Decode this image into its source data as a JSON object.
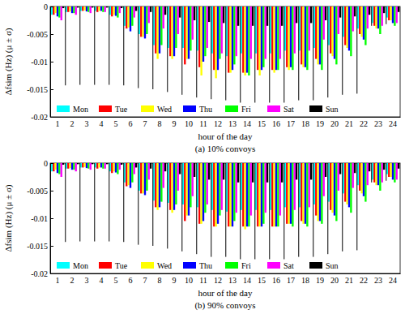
{
  "chart_data": [
    {
      "type": "bar",
      "title": "(a) 10% convoys",
      "x_label": "hour of the day",
      "y_label": "Δfsim (Hz)  (μ ± σ)",
      "categories": [
        "1",
        "2",
        "3",
        "4",
        "5",
        "6",
        "7",
        "8",
        "9",
        "10",
        "11",
        "12",
        "13",
        "14",
        "15",
        "16",
        "17",
        "18",
        "19",
        "20",
        "21",
        "22",
        "23",
        "24"
      ],
      "ylim": [
        -0.02,
        0
      ],
      "yticks": [
        -0.02,
        -0.015,
        -0.01,
        -0.005,
        0
      ],
      "legend": "lower left",
      "grid": false,
      "series": [
        {
          "name": "Mon",
          "color": "#00ffff",
          "values": [
            -0.0015,
            -0.001,
            -0.0008,
            -0.0008,
            -0.0015,
            -0.0035,
            -0.005,
            -0.007,
            -0.0075,
            -0.0075,
            -0.008,
            -0.0085,
            -0.009,
            -0.0085,
            -0.0085,
            -0.0085,
            -0.008,
            -0.008,
            -0.0075,
            -0.007,
            -0.0055,
            -0.004,
            -0.003,
            -0.002
          ]
        },
        {
          "name": "Tue",
          "color": "#ff0000",
          "values": [
            -0.0015,
            -0.001,
            -0.0008,
            -0.001,
            -0.0018,
            -0.004,
            -0.0055,
            -0.0085,
            -0.009,
            -0.0105,
            -0.011,
            -0.0115,
            -0.012,
            -0.012,
            -0.0115,
            -0.0115,
            -0.011,
            -0.0105,
            -0.0095,
            -0.0085,
            -0.007,
            -0.005,
            -0.0035,
            -0.0025
          ]
        },
        {
          "name": "Wed",
          "color": "#ffff00",
          "values": [
            -0.0012,
            -0.0009,
            -0.0007,
            -0.0008,
            -0.0015,
            -0.0038,
            -0.0055,
            -0.0095,
            -0.0095,
            -0.0095,
            -0.0125,
            -0.013,
            -0.012,
            -0.0125,
            -0.0125,
            -0.012,
            -0.0115,
            -0.011,
            -0.0105,
            -0.009,
            -0.0075,
            -0.0055,
            -0.004,
            -0.0025
          ]
        },
        {
          "name": "Thu",
          "color": "#0000ff",
          "values": [
            -0.0018,
            -0.0012,
            -0.0009,
            -0.0008,
            -0.0017,
            -0.0045,
            -0.0058,
            -0.0085,
            -0.009,
            -0.0095,
            -0.01,
            -0.0115,
            -0.0115,
            -0.012,
            -0.0115,
            -0.0115,
            -0.011,
            -0.011,
            -0.0105,
            -0.0095,
            -0.008,
            -0.006,
            -0.004,
            -0.003
          ]
        },
        {
          "name": "Fri",
          "color": "#00ff00",
          "values": [
            -0.002,
            -0.0012,
            -0.001,
            -0.001,
            -0.002,
            -0.0035,
            -0.005,
            -0.007,
            -0.0075,
            -0.008,
            -0.009,
            -0.0095,
            -0.0105,
            -0.0125,
            -0.011,
            -0.0115,
            -0.0115,
            -0.0115,
            -0.0115,
            -0.0105,
            -0.009,
            -0.007,
            -0.005,
            -0.0035
          ]
        },
        {
          "name": "Sat",
          "color": "#ff00ff",
          "values": [
            -0.0025,
            -0.0015,
            -0.0012,
            -0.001,
            -0.0012,
            -0.002,
            -0.003,
            -0.004,
            -0.005,
            -0.006,
            -0.0075,
            -0.0085,
            -0.009,
            -0.0095,
            -0.0095,
            -0.0095,
            -0.0085,
            -0.008,
            -0.006,
            -0.005,
            -0.0045,
            -0.004,
            -0.0035,
            -0.003
          ]
        },
        {
          "name": "Sun",
          "color": "#000000",
          "values": [
            -0.0003,
            -0.0002,
            -0.0002,
            -0.0002,
            -0.0003,
            -0.0008,
            -0.001,
            -0.0015,
            -0.002,
            -0.0025,
            -0.0028,
            -0.003,
            -0.0035,
            -0.0035,
            -0.0035,
            -0.0035,
            -0.003,
            -0.003,
            -0.0025,
            -0.002,
            -0.0018,
            -0.0015,
            -0.0012,
            -0.001
          ],
          "errors": [
            0.014,
            0.014,
            0.014,
            0.014,
            0.014,
            0.014,
            0.014,
            0.014,
            0.014,
            0.014,
            0.014,
            0.014,
            0.014,
            0.014,
            0.014,
            0.014,
            0.014,
            0.014,
            0.014,
            0.014,
            0.014,
            0.002,
            0.002,
            0.002
          ]
        }
      ]
    },
    {
      "type": "bar",
      "title": "(b) 90% convoys",
      "x_label": "hour of the day",
      "y_label": "Δfsim (Hz)  (μ ± σ)",
      "categories": [
        "1",
        "2",
        "3",
        "4",
        "5",
        "6",
        "7",
        "8",
        "9",
        "10",
        "11",
        "12",
        "13",
        "14",
        "15",
        "16",
        "17",
        "18",
        "19",
        "20",
        "21",
        "22",
        "23",
        "24"
      ],
      "ylim": [
        -0.02,
        0
      ],
      "yticks": [
        -0.02,
        -0.015,
        -0.01,
        -0.005,
        0
      ],
      "legend": "lower left",
      "grid": false,
      "series": [
        {
          "name": "Mon",
          "color": "#00ffff",
          "values": [
            -0.0015,
            -0.001,
            -0.0008,
            -0.0008,
            -0.0015,
            -0.0035,
            -0.005,
            -0.0068,
            -0.0072,
            -0.0075,
            -0.008,
            -0.0085,
            -0.0088,
            -0.0085,
            -0.0085,
            -0.0085,
            -0.008,
            -0.008,
            -0.0075,
            -0.007,
            -0.0055,
            -0.004,
            -0.003,
            -0.002
          ]
        },
        {
          "name": "Tue",
          "color": "#ff0000",
          "values": [
            -0.0015,
            -0.001,
            -0.0008,
            -0.001,
            -0.0018,
            -0.0042,
            -0.0055,
            -0.008,
            -0.0085,
            -0.0105,
            -0.011,
            -0.0115,
            -0.0115,
            -0.0115,
            -0.0115,
            -0.0115,
            -0.011,
            -0.0105,
            -0.0095,
            -0.0085,
            -0.007,
            -0.005,
            -0.0035,
            -0.0025
          ]
        },
        {
          "name": "Wed",
          "color": "#ffff00",
          "values": [
            -0.0012,
            -0.0009,
            -0.0007,
            -0.0008,
            -0.0015,
            -0.004,
            -0.0055,
            -0.0085,
            -0.009,
            -0.0095,
            -0.011,
            -0.0115,
            -0.0115,
            -0.012,
            -0.0115,
            -0.0115,
            -0.011,
            -0.011,
            -0.0105,
            -0.009,
            -0.0075,
            -0.0055,
            -0.004,
            -0.0025
          ]
        },
        {
          "name": "Thu",
          "color": "#0000ff",
          "values": [
            -0.0018,
            -0.0012,
            -0.0009,
            -0.0008,
            -0.0017,
            -0.0045,
            -0.0058,
            -0.008,
            -0.0085,
            -0.0095,
            -0.0105,
            -0.011,
            -0.0115,
            -0.0115,
            -0.0115,
            -0.0115,
            -0.011,
            -0.011,
            -0.0105,
            -0.0095,
            -0.008,
            -0.006,
            -0.004,
            -0.003
          ]
        },
        {
          "name": "Fri",
          "color": "#00ff00",
          "values": [
            -0.002,
            -0.0012,
            -0.001,
            -0.001,
            -0.002,
            -0.0035,
            -0.005,
            -0.007,
            -0.0075,
            -0.008,
            -0.009,
            -0.0095,
            -0.0105,
            -0.0115,
            -0.011,
            -0.0115,
            -0.0115,
            -0.0115,
            -0.011,
            -0.0105,
            -0.009,
            -0.007,
            -0.005,
            -0.0035
          ]
        },
        {
          "name": "Sat",
          "color": "#ff00ff",
          "values": [
            -0.0025,
            -0.0015,
            -0.0012,
            -0.001,
            -0.0012,
            -0.002,
            -0.003,
            -0.0045,
            -0.005,
            -0.006,
            -0.0075,
            -0.0085,
            -0.009,
            -0.0095,
            -0.009,
            -0.0095,
            -0.0085,
            -0.008,
            -0.006,
            -0.005,
            -0.0045,
            -0.004,
            -0.0035,
            -0.003
          ]
        },
        {
          "name": "Sun",
          "color": "#000000",
          "values": [
            -0.0003,
            -0.0002,
            -0.0002,
            -0.0002,
            -0.0003,
            -0.0008,
            -0.001,
            -0.0015,
            -0.002,
            -0.0025,
            -0.003,
            -0.003,
            -0.0035,
            -0.0035,
            -0.0035,
            -0.0035,
            -0.003,
            -0.003,
            -0.0025,
            -0.002,
            -0.0018,
            -0.0015,
            -0.0012,
            -0.001
          ],
          "errors": [
            0.014,
            0.014,
            0.014,
            0.014,
            0.014,
            0.014,
            0.014,
            0.014,
            0.014,
            0.014,
            0.014,
            0.014,
            0.014,
            0.014,
            0.014,
            0.014,
            0.014,
            0.014,
            0.014,
            0.014,
            0.014,
            0.002,
            0.002,
            0.002
          ]
        }
      ]
    }
  ]
}
